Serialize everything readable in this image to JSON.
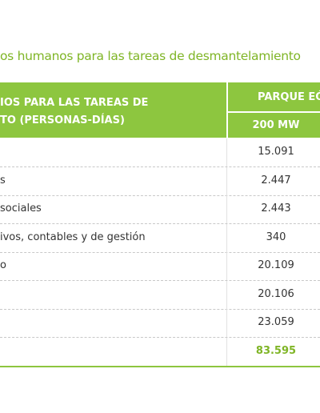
{
  "title": "os humanos para las tareas de desmantelamiento",
  "table": {
    "header": {
      "line1": "IOS PARA LAS TAREAS DE",
      "line2": "TO (PERSONAS-DÍAS)",
      "group": "PARQUE EÓ",
      "column": "200 MW"
    },
    "rows": [
      {
        "value": "15.091"
      },
      {
        "label": "s",
        "value": "2.447"
      },
      {
        "label": "sociales",
        "value": "2.443"
      },
      {
        "label": "ivos, contables y de gestión",
        "value": "340"
      },
      {
        "label": "o",
        "value": "20.109"
      },
      {
        "value": "20.106"
      },
      {
        "value": "23.059"
      },
      {
        "value": "83.595"
      }
    ]
  }
}
